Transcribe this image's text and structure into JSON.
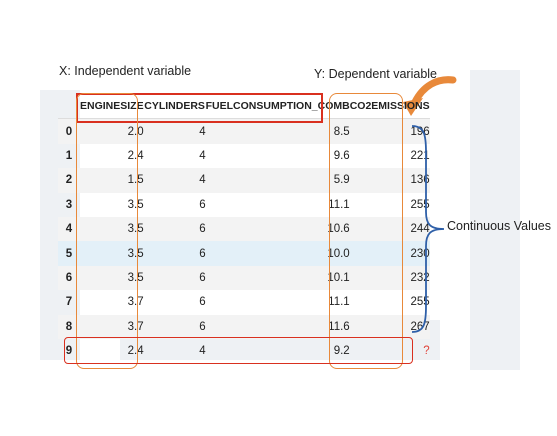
{
  "labels": {
    "x_label": "X: Independent variable",
    "y_label": "Y: Dependent variable",
    "continuous": "Continuous Values"
  },
  "table": {
    "columns": [
      "ENGINESIZE",
      "CYLINDERS",
      "FUELCONSUMPTION_COMB",
      "CO2EMISSIONS"
    ],
    "rows": [
      {
        "idx": "0",
        "engine": "2.0",
        "cyl": "4",
        "fuel": "8.5",
        "co2": "196"
      },
      {
        "idx": "1",
        "engine": "2.4",
        "cyl": "4",
        "fuel": "9.6",
        "co2": "221"
      },
      {
        "idx": "2",
        "engine": "1.5",
        "cyl": "4",
        "fuel": "5.9",
        "co2": "136"
      },
      {
        "idx": "3",
        "engine": "3.5",
        "cyl": "6",
        "fuel": "11.1",
        "co2": "255"
      },
      {
        "idx": "4",
        "engine": "3.5",
        "cyl": "6",
        "fuel": "10.6",
        "co2": "244"
      },
      {
        "idx": "5",
        "engine": "3.5",
        "cyl": "6",
        "fuel": "10.0",
        "co2": "230"
      },
      {
        "idx": "6",
        "engine": "3.5",
        "cyl": "6",
        "fuel": "10.1",
        "co2": "232"
      },
      {
        "idx": "7",
        "engine": "3.7",
        "cyl": "6",
        "fuel": "11.1",
        "co2": "255"
      },
      {
        "idx": "8",
        "engine": "3.7",
        "cyl": "6",
        "fuel": "11.6",
        "co2": "267"
      },
      {
        "idx": "9",
        "engine": "2.4",
        "cyl": "4",
        "fuel": "9.2",
        "co2": "?"
      }
    ]
  },
  "colors": {
    "highlight_red": "#d9301f",
    "highlight_orange": "#e8893a",
    "brace_blue": "#2e5fa8",
    "selected_row": "#e3f0f8"
  }
}
